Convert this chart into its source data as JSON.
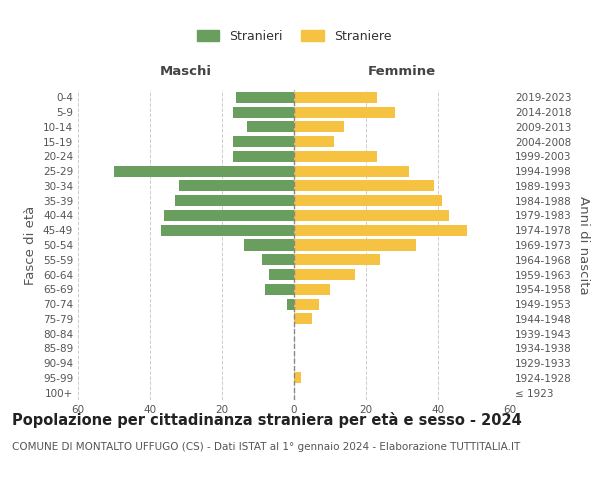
{
  "age_groups": [
    "100+",
    "95-99",
    "90-94",
    "85-89",
    "80-84",
    "75-79",
    "70-74",
    "65-69",
    "60-64",
    "55-59",
    "50-54",
    "45-49",
    "40-44",
    "35-39",
    "30-34",
    "25-29",
    "20-24",
    "15-19",
    "10-14",
    "5-9",
    "0-4"
  ],
  "birth_years": [
    "≤ 1923",
    "1924-1928",
    "1929-1933",
    "1934-1938",
    "1939-1943",
    "1944-1948",
    "1949-1953",
    "1954-1958",
    "1959-1963",
    "1964-1968",
    "1969-1973",
    "1974-1978",
    "1979-1983",
    "1984-1988",
    "1989-1993",
    "1994-1998",
    "1999-2003",
    "2004-2008",
    "2009-2013",
    "2014-2018",
    "2019-2023"
  ],
  "males": [
    0,
    0,
    0,
    0,
    0,
    0,
    2,
    8,
    7,
    9,
    14,
    37,
    36,
    33,
    32,
    50,
    17,
    17,
    13,
    17,
    16
  ],
  "females": [
    0,
    2,
    0,
    0,
    0,
    5,
    7,
    10,
    17,
    24,
    34,
    48,
    43,
    41,
    39,
    32,
    23,
    11,
    14,
    28,
    23
  ],
  "male_color": "#6a9e5e",
  "female_color": "#f5c242",
  "background_color": "#ffffff",
  "grid_color": "#cccccc",
  "title": "Popolazione per cittadinanza straniera per età e sesso - 2024",
  "subtitle": "COMUNE DI MONTALTO UFFUGO (CS) - Dati ISTAT al 1° gennaio 2024 - Elaborazione TUTTITALIA.IT",
  "xlabel_left": "Maschi",
  "xlabel_right": "Femmine",
  "ylabel_left": "Fasce di età",
  "ylabel_right": "Anni di nascita",
  "legend_male": "Stranieri",
  "legend_female": "Straniere",
  "xlim": 60,
  "title_fontsize": 10.5,
  "subtitle_fontsize": 7.5,
  "tick_fontsize": 7.5,
  "label_fontsize": 9.5
}
